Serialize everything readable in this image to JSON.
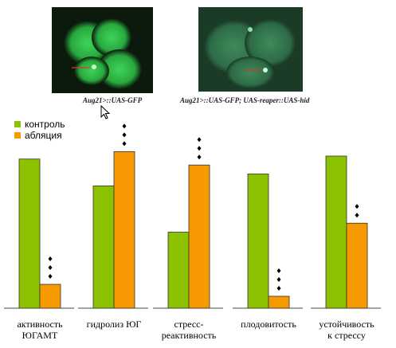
{
  "images": [
    {
      "caption": "Aug21>::UAS-GFP"
    },
    {
      "caption": "Aug21>::UAS-GFP; UAS-reaper::UAS-hid"
    }
  ],
  "chart_data": {
    "type": "bar",
    "categories": [
      [
        "активность",
        "ЮГАМТ"
      ],
      [
        "гидролиз ЮГ",
        ""
      ],
      [
        "стресс-",
        "реактивность"
      ],
      [
        "плодовитость",
        ""
      ],
      [
        "устойчивость",
        "к стрессу"
      ]
    ],
    "series": [
      {
        "name": "контроль",
        "color": "#8dc200",
        "values": [
          100,
          82,
          51,
          90,
          102
        ]
      },
      {
        "name": "абляция",
        "color": "#f79900",
        "values": [
          16,
          105,
          96,
          8,
          57
        ]
      }
    ],
    "significance_marks": [
      3,
      3,
      3,
      3,
      2
    ],
    "legend": "top-left",
    "grid": false,
    "ylim": [
      0,
      110
    ]
  }
}
